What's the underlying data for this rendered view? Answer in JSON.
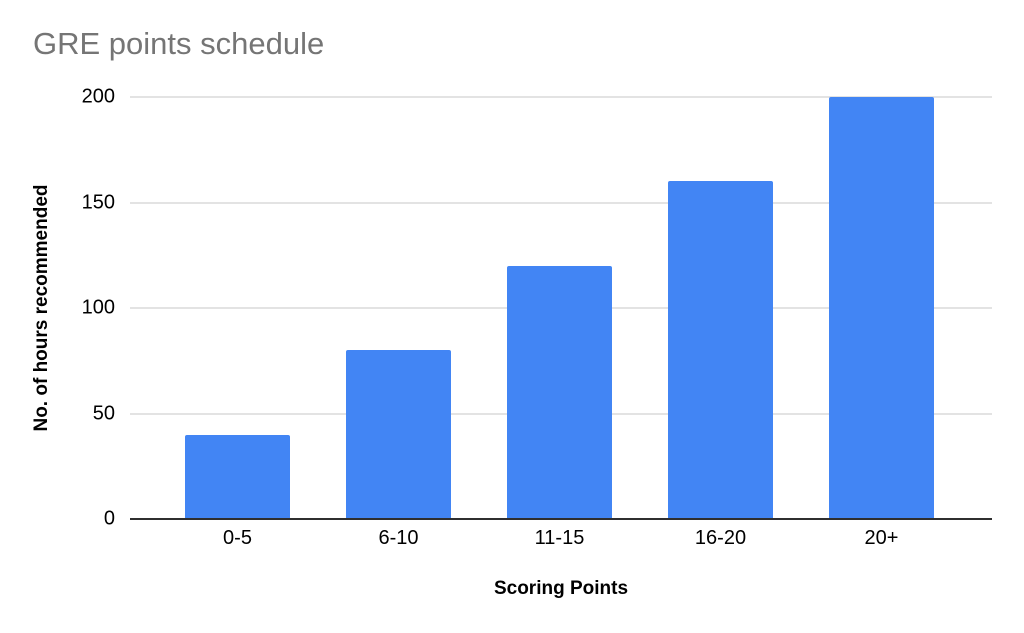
{
  "page": {
    "background": "#ffffff"
  },
  "chart_data": {
    "type": "bar",
    "title": "GRE points schedule",
    "categories": [
      "0-5",
      "6-10",
      "11-15",
      "16-20",
      "20+"
    ],
    "values": [
      40,
      80,
      120,
      160,
      200
    ],
    "xlabel": "Scoring Points",
    "ylabel": "No. of hours recommended",
    "ylim": [
      0,
      200
    ],
    "yticks": [
      0,
      50,
      100,
      150,
      200
    ],
    "grid": true,
    "legend_position": "none",
    "colors": {
      "bar": "#4285F4",
      "title_text": "#757575",
      "gridline": "#e3e3e3",
      "axis_line": "#2f2f2f",
      "tick_text": "#000000"
    }
  }
}
